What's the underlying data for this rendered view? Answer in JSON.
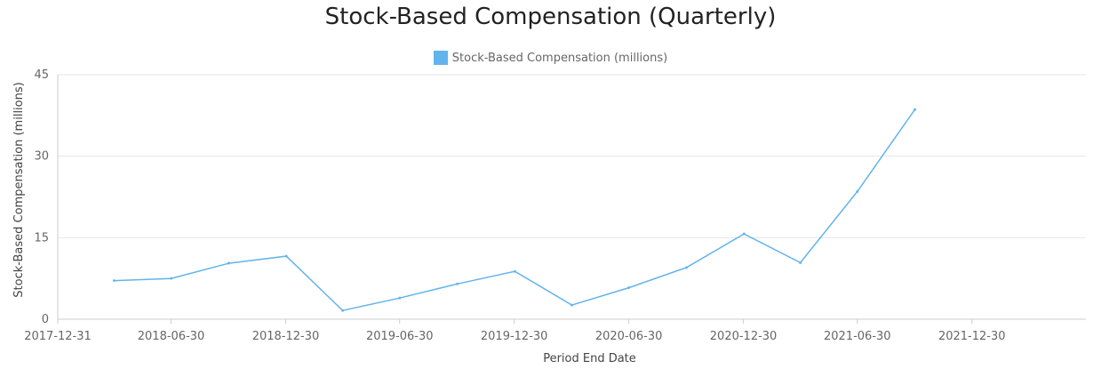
{
  "chart_data": {
    "type": "line",
    "title": "Stock-Based Compensation (Quarterly)",
    "xlabel": "Period End Date",
    "ylabel": "Stock-Based Compensation (millions)",
    "ylim": [
      0,
      45
    ],
    "xlim": [
      "2017-12-31",
      "2022-06-30"
    ],
    "y_ticks": [
      0,
      15,
      30,
      45
    ],
    "x_ticks": [
      "2017-12-31",
      "2018-06-30",
      "2018-12-30",
      "2019-06-30",
      "2019-12-30",
      "2020-06-30",
      "2020-12-30",
      "2021-06-30",
      "2021-12-30"
    ],
    "grid": true,
    "legend_position": "top-center",
    "series": [
      {
        "name": "Stock-Based Compensation (millions)",
        "color": "#63b3ed",
        "x": [
          "2018-03-31",
          "2018-06-30",
          "2018-09-30",
          "2018-12-31",
          "2019-03-31",
          "2019-06-30",
          "2019-09-30",
          "2019-12-31",
          "2020-03-31",
          "2020-06-30",
          "2020-09-30",
          "2020-12-31",
          "2021-03-31",
          "2021-06-30",
          "2021-09-30"
        ],
        "values": [
          7.1,
          7.5,
          10.3,
          11.6,
          1.6,
          3.9,
          6.5,
          8.8,
          2.6,
          5.8,
          9.5,
          15.7,
          10.4,
          23.5,
          38.6
        ]
      }
    ]
  }
}
